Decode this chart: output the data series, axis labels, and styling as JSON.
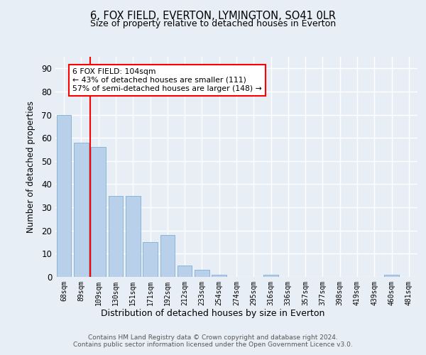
{
  "title": "6, FOX FIELD, EVERTON, LYMINGTON, SO41 0LR",
  "subtitle": "Size of property relative to detached houses in Everton",
  "xlabel": "Distribution of detached houses by size in Everton",
  "ylabel": "Number of detached properties",
  "categories": [
    "68sqm",
    "89sqm",
    "109sqm",
    "130sqm",
    "151sqm",
    "171sqm",
    "192sqm",
    "212sqm",
    "233sqm",
    "254sqm",
    "274sqm",
    "295sqm",
    "316sqm",
    "336sqm",
    "357sqm",
    "377sqm",
    "398sqm",
    "419sqm",
    "439sqm",
    "460sqm",
    "481sqm"
  ],
  "values": [
    70,
    58,
    56,
    35,
    35,
    15,
    18,
    5,
    3,
    1,
    0,
    0,
    1,
    0,
    0,
    0,
    0,
    0,
    0,
    1,
    0
  ],
  "bar_color": "#b8d0ea",
  "bar_edge_color": "#8ab4d8",
  "background_color": "#e8eef6",
  "grid_color": "#ffffff",
  "vline_color": "red",
  "annotation_text": "6 FOX FIELD: 104sqm\n← 43% of detached houses are smaller (111)\n57% of semi-detached houses are larger (148) →",
  "annotation_box_color": "white",
  "annotation_box_edge": "red",
  "ylim": [
    0,
    95
  ],
  "yticks": [
    0,
    10,
    20,
    30,
    40,
    50,
    60,
    70,
    80,
    90
  ],
  "footer": "Contains HM Land Registry data © Crown copyright and database right 2024.\nContains public sector information licensed under the Open Government Licence v3.0."
}
